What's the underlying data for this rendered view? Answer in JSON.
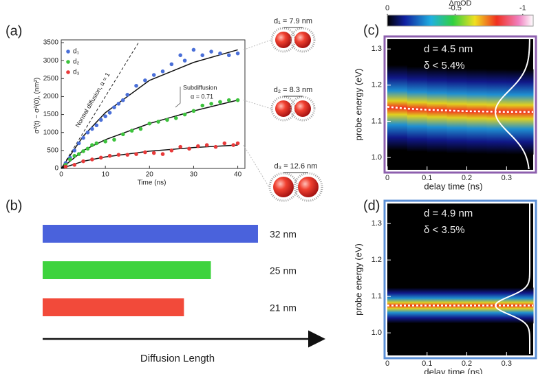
{
  "chart_data": [
    {
      "type": "scatter",
      "panel_label": "(a)",
      "xlabel": "Time (ns)",
      "ylabel": "σ²(t) − σ²(0), (nm²)",
      "xlim": [
        0,
        41
      ],
      "xticks": [
        0,
        10,
        20,
        30,
        40
      ],
      "ylim": [
        0,
        3500
      ],
      "yticks": [
        0,
        500,
        1000,
        1500,
        2000,
        2500,
        3000,
        3500
      ],
      "series": [
        {
          "name": "d₁",
          "color": "#4a6fd8",
          "x": [
            1,
            2,
            3,
            4,
            5,
            6,
            7,
            8,
            9,
            10,
            11,
            12,
            13,
            14,
            15,
            17,
            19,
            21,
            23,
            25,
            27,
            28,
            30,
            32,
            34,
            36,
            38,
            40
          ],
          "values": [
            150,
            300,
            500,
            700,
            850,
            1000,
            1100,
            1200,
            1350,
            1450,
            1550,
            1700,
            1800,
            1900,
            2050,
            2300,
            2450,
            2600,
            2700,
            2900,
            3150,
            3000,
            3300,
            3150,
            3250,
            3200,
            3150,
            3200
          ]
        },
        {
          "name": "d₂",
          "color": "#3cc23c",
          "x": [
            1,
            2,
            3,
            4,
            5,
            6,
            7,
            8,
            10,
            12,
            14,
            16,
            18,
            20,
            22,
            24,
            26,
            28,
            30,
            32,
            34,
            36,
            38,
            40
          ],
          "values": [
            100,
            250,
            350,
            400,
            480,
            550,
            650,
            700,
            750,
            800,
            950,
            1050,
            1100,
            1250,
            1300,
            1350,
            1400,
            1500,
            1600,
            1750,
            1800,
            1850,
            1900,
            1900
          ]
        },
        {
          "name": "d₃",
          "color": "#e83a3a",
          "x": [
            1,
            3,
            5,
            7,
            9,
            11,
            13,
            15,
            17,
            19,
            21,
            23,
            25,
            27,
            29,
            31,
            33,
            35,
            37,
            39,
            40
          ],
          "values": [
            50,
            100,
            200,
            250,
            300,
            350,
            380,
            380,
            400,
            450,
            430,
            400,
            500,
            600,
            550,
            620,
            650,
            600,
            700,
            650,
            700
          ]
        }
      ],
      "fit_lines": [
        {
          "x": [
            0,
            5,
            10,
            20,
            30,
            40
          ],
          "values": [
            0,
            900,
            1550,
            2450,
            2950,
            3300
          ]
        },
        {
          "x": [
            0,
            5,
            10,
            20,
            30,
            40
          ],
          "values": [
            0,
            500,
            800,
            1250,
            1600,
            1900
          ]
        },
        {
          "x": [
            0,
            5,
            10,
            20,
            30,
            40
          ],
          "values": [
            0,
            200,
            320,
            480,
            580,
            650
          ]
        }
      ],
      "reference_line": {
        "x": [
          0,
          17.5
        ],
        "values": [
          0,
          3500
        ]
      },
      "annotations": [
        "Normal diffusion, α = 1",
        "Subdiffusion",
        "α = 0.71"
      ],
      "particle_labels": [
        "d₁ = 7.9 nm",
        "d₂ = 8.3 nm",
        "d₃ = 12.6 nm"
      ]
    },
    {
      "type": "hbar",
      "panel_label": "(b)",
      "xlabel": "Diffusion Length",
      "xlim": [
        0,
        41
      ],
      "categories": [
        null,
        null,
        null
      ],
      "values": [
        32,
        25,
        21
      ],
      "value_labels": [
        "32 nm",
        "25 nm",
        "21 nm"
      ],
      "colors": [
        "#4a62dc",
        "#3ed33e",
        "#f24a3a"
      ]
    },
    {
      "type": "heatmap",
      "panel_label": "(c)",
      "xlabel": "delay time (ns)",
      "ylabel": "probe energy (eV)",
      "frame_color": "#8d5fae",
      "xlim": [
        0,
        0.367
      ],
      "xticks": [
        0,
        0.1,
        0.2,
        0.3
      ],
      "ylim": [
        0.966,
        1.327
      ],
      "yticks": [
        {
          "value": 1,
          "label": "1.0"
        },
        1.1,
        1.2,
        1.3
      ],
      "annotations": [
        "d = 4.5 nm",
        "δ < 5.4%"
      ],
      "peak_line": {
        "x": [
          0,
          0.05,
          0.1,
          0.15,
          0.2,
          0.25,
          0.3,
          0.35,
          0.367
        ],
        "values": [
          1.14,
          1.135,
          1.132,
          1.13,
          1.128,
          1.127,
          1.126,
          1.126,
          1.126
        ]
      },
      "colorbar": {
        "title": "ΔmOD",
        "lim": [
          0,
          -1.077
        ],
        "ticks": [
          0,
          -0.5,
          -1
        ]
      }
    },
    {
      "type": "heatmap",
      "panel_label": "(d)",
      "xlabel": "delay time (ns)",
      "ylabel": "probe energy (eV)",
      "frame_color": "#5b8fd6",
      "xlim": [
        0,
        0.367
      ],
      "xticks": [
        0,
        0.1,
        0.2,
        0.3
      ],
      "ylim": [
        0.938,
        1.355
      ],
      "yticks": [
        {
          "value": 1,
          "label": "1.0"
        },
        1.1,
        1.2,
        1.3
      ],
      "annotations": [
        "d = 4.9 nm",
        "δ < 3.5%"
      ],
      "peak_line": {
        "x": [
          0,
          0.367
        ],
        "values": [
          1.075,
          1.075
        ]
      }
    }
  ]
}
